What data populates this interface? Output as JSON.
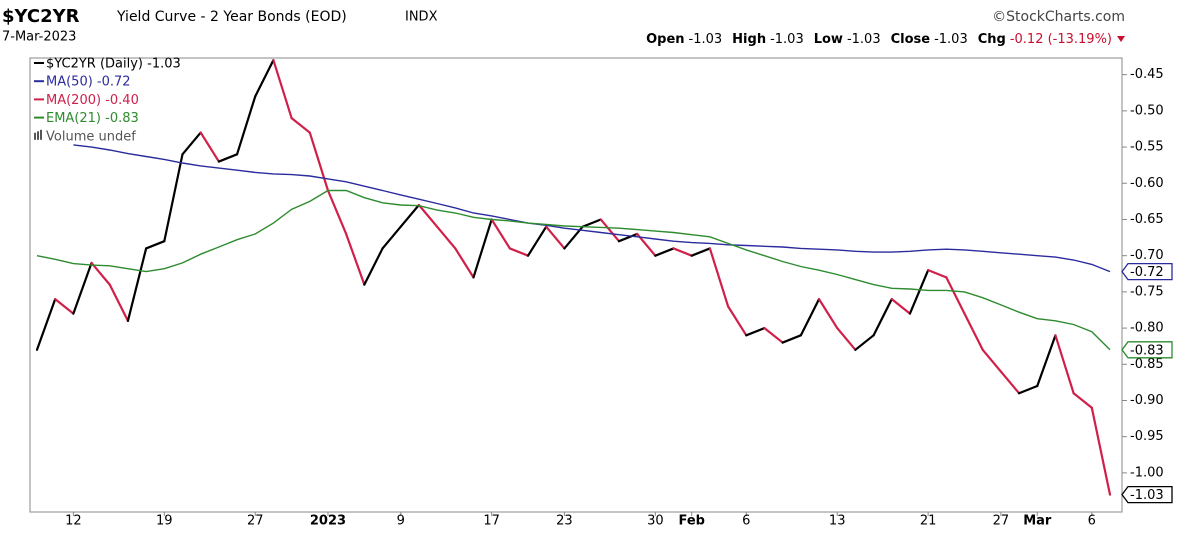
{
  "header": {
    "symbol": "$YC2YR",
    "name": "Yield Curve - 2 Year Bonds (EOD)",
    "exchange": "INDX",
    "source": "©StockCharts.com",
    "date": "7-Mar-2023",
    "quote": [
      {
        "label": "Open",
        "value": "-1.03"
      },
      {
        "label": "High",
        "value": "-1.03"
      },
      {
        "label": "Low",
        "value": "-1.03"
      },
      {
        "label": "Close",
        "value": "-1.03"
      },
      {
        "label": "Chg",
        "value": "-0.12 (-13.19%)",
        "color": "#c8102e"
      }
    ]
  },
  "chart_data": {
    "type": "line",
    "categories": [
      null,
      null,
      "12",
      null,
      null,
      null,
      null,
      "19",
      null,
      null,
      null,
      null,
      "27",
      null,
      null,
      null,
      "2023",
      null,
      null,
      null,
      "9",
      null,
      null,
      null,
      null,
      "17",
      null,
      null,
      null,
      "23",
      null,
      null,
      null,
      null,
      "30",
      null,
      "Feb",
      null,
      null,
      "6",
      null,
      null,
      null,
      null,
      "13",
      null,
      null,
      null,
      null,
      "21",
      null,
      null,
      null,
      "27",
      null,
      "Mar",
      null,
      null,
      "6",
      null
    ],
    "up_color": "#000000",
    "down_color": "#d0204a",
    "series": [
      {
        "values": [
          -0.83,
          -0.76,
          -0.78,
          -0.71,
          -0.74,
          -0.79,
          -0.69,
          -0.68,
          -0.56,
          -0.53,
          -0.57,
          -0.56,
          -0.48,
          -0.43,
          -0.51,
          -0.53,
          -0.61,
          -0.67,
          -0.74,
          -0.69,
          -0.66,
          -0.63,
          -0.66,
          -0.69,
          -0.73,
          -0.65,
          -0.69,
          -0.7,
          -0.66,
          -0.69,
          -0.66,
          -0.65,
          -0.68,
          -0.67,
          -0.7,
          -0.69,
          -0.7,
          -0.69,
          -0.77,
          -0.81,
          -0.8,
          -0.82,
          -0.81,
          -0.76,
          -0.8,
          -0.83,
          -0.81,
          -0.76,
          -0.78,
          -0.72,
          -0.73,
          -0.78,
          -0.83,
          -0.86,
          -0.89,
          -0.88,
          -0.81,
          -0.89,
          -0.91,
          -1.03
        ],
        "color": "#000000",
        "end_label": "-1.03",
        "updown": true
      },
      {
        "values": [
          null,
          null,
          -0.547,
          -0.55,
          -0.554,
          -0.559,
          -0.563,
          -0.567,
          -0.572,
          -0.576,
          -0.579,
          -0.582,
          -0.585,
          -0.587,
          -0.588,
          -0.59,
          -0.594,
          -0.598,
          -0.604,
          -0.61,
          -0.616,
          -0.622,
          -0.628,
          -0.634,
          -0.641,
          -0.645,
          -0.65,
          -0.655,
          -0.658,
          -0.662,
          -0.665,
          -0.668,
          -0.671,
          -0.674,
          -0.677,
          -0.68,
          -0.682,
          -0.683,
          -0.685,
          -0.686,
          -0.687,
          -0.688,
          -0.69,
          -0.691,
          -0.692,
          -0.694,
          -0.695,
          -0.695,
          -0.694,
          -0.692,
          -0.691,
          -0.692,
          -0.694,
          -0.696,
          -0.698,
          -0.7,
          -0.702,
          -0.706,
          -0.712,
          -0.722
        ],
        "color": "#2b2b9e",
        "end_label": "-0.72"
      },
      {
        "values": [
          -0.7,
          -0.705,
          -0.711,
          -0.713,
          -0.714,
          -0.718,
          -0.722,
          -0.718,
          -0.71,
          -0.698,
          -0.688,
          -0.678,
          -0.67,
          -0.655,
          -0.636,
          -0.625,
          -0.61,
          -0.61,
          -0.62,
          -0.627,
          -0.63,
          -0.631,
          -0.637,
          -0.641,
          -0.647,
          -0.65,
          -0.652,
          -0.655,
          -0.657,
          -0.659,
          -0.66,
          -0.661,
          -0.662,
          -0.664,
          -0.666,
          -0.668,
          -0.671,
          -0.674,
          -0.683,
          -0.692,
          -0.7,
          -0.708,
          -0.715,
          -0.72,
          -0.726,
          -0.733,
          -0.74,
          -0.745,
          -0.746,
          -0.748,
          -0.748,
          -0.75,
          -0.758,
          -0.768,
          -0.778,
          -0.787,
          -0.79,
          -0.795,
          -0.805,
          -0.83
        ],
        "color": "#2e8b2e",
        "end_label": "-0.83"
      }
    ],
    "legend": [
      {
        "text": "$YC2YR (Daily) -1.03",
        "color": "#000000"
      },
      {
        "text": "MA(50) -0.72",
        "color": "#2b2b9e"
      },
      {
        "text": "MA(200) -0.40",
        "color": "#d0204a"
      },
      {
        "text": "EMA(21) -0.83",
        "color": "#2e8b2e"
      },
      {
        "text": "Volume undef",
        "color": "#555555",
        "icon": "bars"
      }
    ],
    "ylim": [
      -1.054,
      -0.427
    ],
    "yticks": [
      {
        "value": -0.45,
        "label": "-0.45"
      },
      {
        "value": -0.5,
        "label": "-0.50"
      },
      {
        "value": -0.55,
        "label": "-0.55"
      },
      {
        "value": -0.6,
        "label": "-0.60"
      },
      {
        "value": -0.65,
        "label": "-0.65"
      },
      {
        "value": -0.7,
        "label": "-0.70"
      },
      {
        "value": -0.75,
        "label": "-0.75"
      },
      {
        "value": -0.8,
        "label": "-0.80"
      },
      {
        "value": -0.85,
        "label": "-0.85"
      },
      {
        "value": -0.9,
        "label": "-0.90"
      },
      {
        "value": -0.95,
        "label": "-0.95"
      },
      {
        "value": -1.0,
        "label": "-1.00"
      }
    ]
  }
}
